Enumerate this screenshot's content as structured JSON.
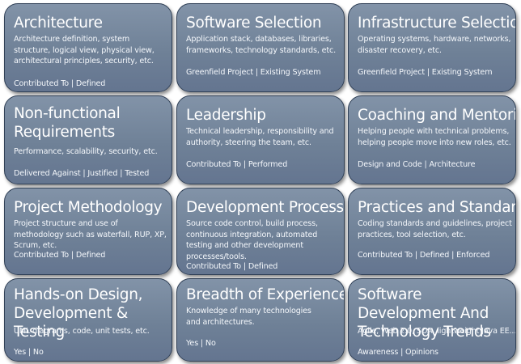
{
  "cards": [
    {
      "title": "Architecture",
      "description": "Architecture definition, system structure, logical view, physical view, architectural principles, security, etc.",
      "tags": "Contributed To | Defined"
    },
    {
      "title": "Software Selection",
      "description": "Application stack, databases, libraries, frameworks, technology standards, etc.",
      "tags": "Greenfield Project | Existing System"
    },
    {
      "title": "Infrastructure Selection",
      "description": "Operating systems, hardware, networks, disaster recovery, etc.",
      "tags": "Greenfield Project | Existing System"
    },
    {
      "title": "Non-functional Requirements",
      "description": "Performance, scalability, security, etc.",
      "tags": "Delivered Against | Justified | Tested"
    },
    {
      "title": "Leadership",
      "description": "Technical leadership, responsibility and authority, steering the team, etc.",
      "tags": "Contributed To | Performed"
    },
    {
      "title": "Coaching and Mentoring",
      "description": "Helping people with technical problems, helping people move into new roles, etc.",
      "tags": "Design and Code | Architecture"
    },
    {
      "title": "Project Methodology",
      "description": "Project structure and use of methodology such as waterfall, RUP, XP, Scrum, etc.",
      "tags": "Contributed To | Defined"
    },
    {
      "title": "Development Processes",
      "description": "Source code control, build process, continuous integration, automated testing and other development processes/tools.",
      "tags": "Contributed To | Defined"
    },
    {
      "title": "Practices and Standards",
      "description": "Coding standards and guidelines, project practices, tool selection, etc.",
      "tags": "Contributed To | Defined | Enforced"
    },
    {
      "title": "Hands-on Design, Development & Testing",
      "description": "UML diagrams, code, unit tests, etc.",
      "tags": "Yes | No"
    },
    {
      "title": "Breadth of Experience",
      "description": "Knowledge of many technologies and architectures.",
      "tags": "Yes | No"
    },
    {
      "title": "Software Development And Technology Trends",
      "description": "Agile, Web 2.0, SOA, lightweight Java EE...",
      "tags": "Awareness | Opinions"
    }
  ]
}
